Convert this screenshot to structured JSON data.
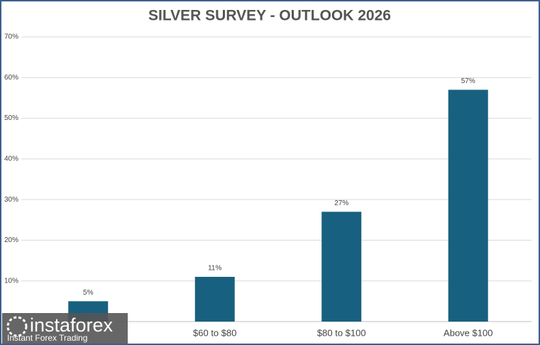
{
  "chart_data": {
    "type": "bar",
    "title": "SILVER SURVEY - OUTLOOK 2026",
    "categories": [
      null,
      "$60 to $80",
      "$80 to $100",
      "Above $100"
    ],
    "values": [
      5,
      11,
      27,
      57
    ],
    "value_labels": [
      "5%",
      "11%",
      "27%",
      "57%"
    ],
    "color": "#18607f",
    "ylim": [
      0,
      70
    ],
    "yticks": [
      {
        "value": 10,
        "label": "10%"
      },
      {
        "value": 20,
        "label": "20%"
      },
      {
        "value": 30,
        "label": "30%"
      },
      {
        "value": 40,
        "label": "40%"
      },
      {
        "value": 50,
        "label": "50%"
      },
      {
        "value": 60,
        "label": "60%"
      },
      {
        "value": 70,
        "label": "70%"
      }
    ],
    "grid": true
  },
  "watermark": {
    "brand": "instaforex",
    "tagline": "Instant Forex Trading"
  }
}
